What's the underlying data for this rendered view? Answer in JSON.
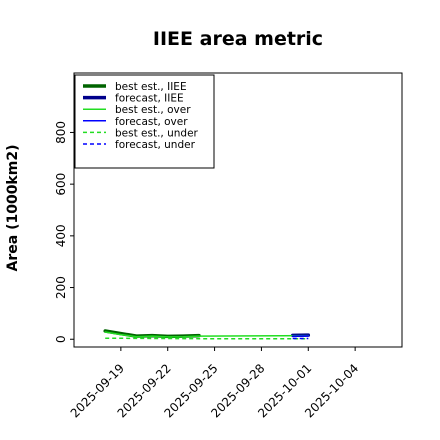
{
  "chart_data": {
    "type": "line",
    "title": "IIEE area metric",
    "xlabel": "",
    "ylabel": "Area (1000km2)",
    "xlim": [
      "2025-09-16",
      "2025-10-07"
    ],
    "ylim": [
      -30,
      1030
    ],
    "xticks": [
      "2025-09-19",
      "2025-09-22",
      "2025-09-25",
      "2025-09-28",
      "2025-10-01",
      "2025-10-04"
    ],
    "highlighted_xtick": "2025-09-25",
    "highlight_color": "#2e8b2e",
    "yticks": [
      0,
      200,
      400,
      600,
      800
    ],
    "grid": false,
    "legend_position": "top-left",
    "series": [
      {
        "name": "best est., IIEE",
        "color": "#006400",
        "style": "solid",
        "width": 3.5,
        "points": [
          [
            "2025-09-18",
            32
          ],
          [
            "2025-09-19",
            22
          ],
          [
            "2025-09-20",
            12
          ],
          [
            "2025-09-21",
            14
          ],
          [
            "2025-09-22",
            11
          ],
          [
            "2025-09-23",
            12
          ],
          [
            "2025-09-24",
            14
          ]
        ]
      },
      {
        "name": "forecast, IIEE",
        "color": "#00008b",
        "style": "solid",
        "width": 3.5,
        "points": [
          [
            "2025-09-30",
            15
          ],
          [
            "2025-10-01",
            16
          ]
        ]
      },
      {
        "name": "best est., over",
        "color": "#22dd22",
        "style": "solid",
        "width": 1.5,
        "points": [
          [
            "2025-09-18",
            28
          ],
          [
            "2025-09-19",
            18
          ],
          [
            "2025-09-20",
            10
          ],
          [
            "2025-09-21",
            12
          ],
          [
            "2025-09-22",
            9
          ],
          [
            "2025-09-23",
            10
          ],
          [
            "2025-09-24",
            12
          ],
          [
            "2025-10-01",
            14
          ]
        ]
      },
      {
        "name": "forecast, over",
        "color": "#0000ff",
        "style": "solid",
        "width": 1.5,
        "points": [
          [
            "2025-09-30",
            12
          ],
          [
            "2025-10-01",
            13
          ]
        ]
      },
      {
        "name": "best est., under",
        "color": "#22dd22",
        "style": "dashed",
        "width": 1.5,
        "points": [
          [
            "2025-09-18",
            4
          ],
          [
            "2025-09-24",
            2
          ],
          [
            "2025-10-01",
            2
          ]
        ]
      },
      {
        "name": "forecast, under",
        "color": "#0000ff",
        "style": "dashed",
        "width": 1.5,
        "points": [
          [
            "2025-09-30",
            3
          ],
          [
            "2025-10-01",
            3
          ]
        ]
      }
    ]
  }
}
